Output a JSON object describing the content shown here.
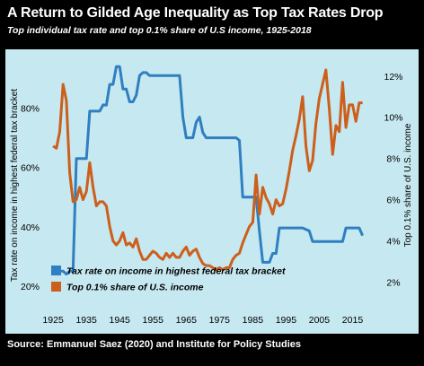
{
  "header": {
    "title": "A Return to Gilded Age Inequality as Top Tax Rates Drop",
    "subtitle": "Top individual tax rate and top 0.1% share of U.S income, 1925-2018"
  },
  "footer": {
    "source": "Source: Emmanuel Saez (2020) and Institute for Policy Studies"
  },
  "colors": {
    "frame": "#000000",
    "plot_bg": "#c6e8f0",
    "tax_rate": "#2f7fc1",
    "income_share": "#cc5f1c",
    "text": "#000000",
    "header_text": "#ffffff"
  },
  "chart_data": {
    "type": "line",
    "title": "A Return to Gilded Age Inequality as Top Tax Rates Drop",
    "subtitle": "Top individual tax rate and top 0.1% share of U.S income, 1925-2018",
    "xlabel": "",
    "ylabel_left": "Tax rate on income in highest federal tax bracket",
    "ylabel_right": "Top 0.1% share of U.S. income",
    "x_ticks": [
      "1925",
      "1935",
      "1945",
      "1955",
      "1965",
      "1975",
      "1985",
      "1995",
      "2005",
      "2015"
    ],
    "y_left_ticks": [
      "20%",
      "40%",
      "60%",
      "80%"
    ],
    "y_right_ticks": [
      "2%",
      "4%",
      "6%",
      "8%",
      "10%",
      "12%"
    ],
    "xlim": [
      1922,
      2020
    ],
    "ylim_left": [
      13,
      95
    ],
    "ylim_right": [
      0.8,
      12.6
    ],
    "legend_position": "bottom-left",
    "grid": false,
    "series": [
      {
        "name": "Tax rate on income in highest federal tax bracket",
        "axis": "left",
        "color": "#2f7fc1",
        "points": [
          [
            1925,
            25
          ],
          [
            1926,
            25
          ],
          [
            1927,
            25
          ],
          [
            1928,
            25
          ],
          [
            1929,
            24
          ],
          [
            1930,
            25
          ],
          [
            1931,
            25
          ],
          [
            1932,
            63
          ],
          [
            1933,
            63
          ],
          [
            1934,
            63
          ],
          [
            1935,
            63
          ],
          [
            1936,
            79
          ],
          [
            1937,
            79
          ],
          [
            1938,
            79
          ],
          [
            1939,
            79
          ],
          [
            1940,
            81.1
          ],
          [
            1941,
            81
          ],
          [
            1942,
            88
          ],
          [
            1943,
            88
          ],
          [
            1944,
            94
          ],
          [
            1945,
            94
          ],
          [
            1946,
            86.45
          ],
          [
            1947,
            86.45
          ],
          [
            1948,
            82.13
          ],
          [
            1949,
            82.13
          ],
          [
            1950,
            84.36
          ],
          [
            1951,
            91
          ],
          [
            1952,
            92
          ],
          [
            1953,
            92
          ],
          [
            1954,
            91
          ],
          [
            1955,
            91
          ],
          [
            1956,
            91
          ],
          [
            1957,
            91
          ],
          [
            1958,
            91
          ],
          [
            1959,
            91
          ],
          [
            1960,
            91
          ],
          [
            1961,
            91
          ],
          [
            1962,
            91
          ],
          [
            1963,
            91
          ],
          [
            1964,
            77
          ],
          [
            1965,
            70
          ],
          [
            1966,
            70
          ],
          [
            1967,
            70
          ],
          [
            1968,
            75.25
          ],
          [
            1969,
            77
          ],
          [
            1970,
            71.75
          ],
          [
            1971,
            70
          ],
          [
            1972,
            70
          ],
          [
            1973,
            70
          ],
          [
            1974,
            70
          ],
          [
            1975,
            70
          ],
          [
            1976,
            70
          ],
          [
            1977,
            70
          ],
          [
            1978,
            70
          ],
          [
            1979,
            70
          ],
          [
            1980,
            70
          ],
          [
            1981,
            69.13
          ],
          [
            1982,
            50
          ],
          [
            1983,
            50
          ],
          [
            1984,
            50
          ],
          [
            1985,
            50
          ],
          [
            1986,
            50
          ],
          [
            1987,
            38.5
          ],
          [
            1988,
            28
          ],
          [
            1989,
            28
          ],
          [
            1990,
            28
          ],
          [
            1991,
            31
          ],
          [
            1992,
            31
          ],
          [
            1993,
            39.6
          ],
          [
            1994,
            39.6
          ],
          [
            1995,
            39.6
          ],
          [
            1996,
            39.6
          ],
          [
            1997,
            39.6
          ],
          [
            1998,
            39.6
          ],
          [
            1999,
            39.6
          ],
          [
            2000,
            39.6
          ],
          [
            2001,
            39.1
          ],
          [
            2002,
            38.6
          ],
          [
            2003,
            35
          ],
          [
            2004,
            35
          ],
          [
            2005,
            35
          ],
          [
            2006,
            35
          ],
          [
            2007,
            35
          ],
          [
            2008,
            35
          ],
          [
            2009,
            35
          ],
          [
            2010,
            35
          ],
          [
            2011,
            35
          ],
          [
            2012,
            35
          ],
          [
            2013,
            39.6
          ],
          [
            2014,
            39.6
          ],
          [
            2015,
            39.6
          ],
          [
            2016,
            39.6
          ],
          [
            2017,
            39.6
          ],
          [
            2018,
            37
          ]
        ]
      },
      {
        "name": "Top 0.1% share of U.S. income",
        "axis": "right",
        "color": "#cc5f1c",
        "points": [
          [
            1925,
            8.6
          ],
          [
            1926,
            8.5
          ],
          [
            1927,
            9.3
          ],
          [
            1928,
            11.6
          ],
          [
            1929,
            10.8
          ],
          [
            1930,
            7.3
          ],
          [
            1931,
            5.9
          ],
          [
            1932,
            6
          ],
          [
            1933,
            6.6
          ],
          [
            1934,
            6
          ],
          [
            1935,
            6.4
          ],
          [
            1936,
            7.8
          ],
          [
            1937,
            6.6
          ],
          [
            1938,
            5.7
          ],
          [
            1939,
            5.9
          ],
          [
            1940,
            5.9
          ],
          [
            1941,
            5.7
          ],
          [
            1942,
            4.7
          ],
          [
            1943,
            4
          ],
          [
            1944,
            3.8
          ],
          [
            1945,
            4
          ],
          [
            1946,
            4.4
          ],
          [
            1947,
            3.8
          ],
          [
            1948,
            3.9
          ],
          [
            1949,
            3.7
          ],
          [
            1950,
            4.1
          ],
          [
            1951,
            3.5
          ],
          [
            1952,
            3.1
          ],
          [
            1953,
            3.1
          ],
          [
            1954,
            3.3
          ],
          [
            1955,
            3.5
          ],
          [
            1956,
            3.4
          ],
          [
            1957,
            3.2
          ],
          [
            1958,
            3.1
          ],
          [
            1959,
            3.4
          ],
          [
            1960,
            3.2
          ],
          [
            1961,
            3.4
          ],
          [
            1962,
            3.2
          ],
          [
            1963,
            3.2
          ],
          [
            1964,
            3.5
          ],
          [
            1965,
            3.7
          ],
          [
            1966,
            3.3
          ],
          [
            1967,
            3.5
          ],
          [
            1968,
            3.6
          ],
          [
            1969,
            3.2
          ],
          [
            1970,
            2.9
          ],
          [
            1971,
            2.8
          ],
          [
            1972,
            2.8
          ],
          [
            1973,
            2.7
          ],
          [
            1974,
            2.6
          ],
          [
            1975,
            2.7
          ],
          [
            1976,
            2.6
          ],
          [
            1977,
            2.7
          ],
          [
            1978,
            2.7
          ],
          [
            1979,
            3.1
          ],
          [
            1980,
            3.3
          ],
          [
            1981,
            3.4
          ],
          [
            1982,
            3.9
          ],
          [
            1983,
            4.3
          ],
          [
            1984,
            4.7
          ],
          [
            1985,
            4.9
          ],
          [
            1986,
            7.2
          ],
          [
            1987,
            5.3
          ],
          [
            1988,
            6.6
          ],
          [
            1989,
            6.1
          ],
          [
            1990,
            5.8
          ],
          [
            1991,
            5.3
          ],
          [
            1992,
            6
          ],
          [
            1993,
            5.7
          ],
          [
            1994,
            5.8
          ],
          [
            1995,
            6.5
          ],
          [
            1996,
            7.4
          ],
          [
            1997,
            8.4
          ],
          [
            1998,
            9.1
          ],
          [
            1999,
            9.9
          ],
          [
            2000,
            11
          ],
          [
            2001,
            8.6
          ],
          [
            2002,
            7.4
          ],
          [
            2003,
            7.9
          ],
          [
            2004,
            9.7
          ],
          [
            2005,
            10.9
          ],
          [
            2006,
            11.6
          ],
          [
            2007,
            12.3
          ],
          [
            2008,
            10.4
          ],
          [
            2009,
            8.2
          ],
          [
            2010,
            9.6
          ],
          [
            2011,
            9.3
          ],
          [
            2012,
            11.7
          ],
          [
            2013,
            9.5
          ],
          [
            2014,
            10.6
          ],
          [
            2015,
            10.6
          ],
          [
            2016,
            9.8
          ],
          [
            2017,
            10.7
          ],
          [
            2018,
            10.7
          ]
        ]
      }
    ]
  }
}
